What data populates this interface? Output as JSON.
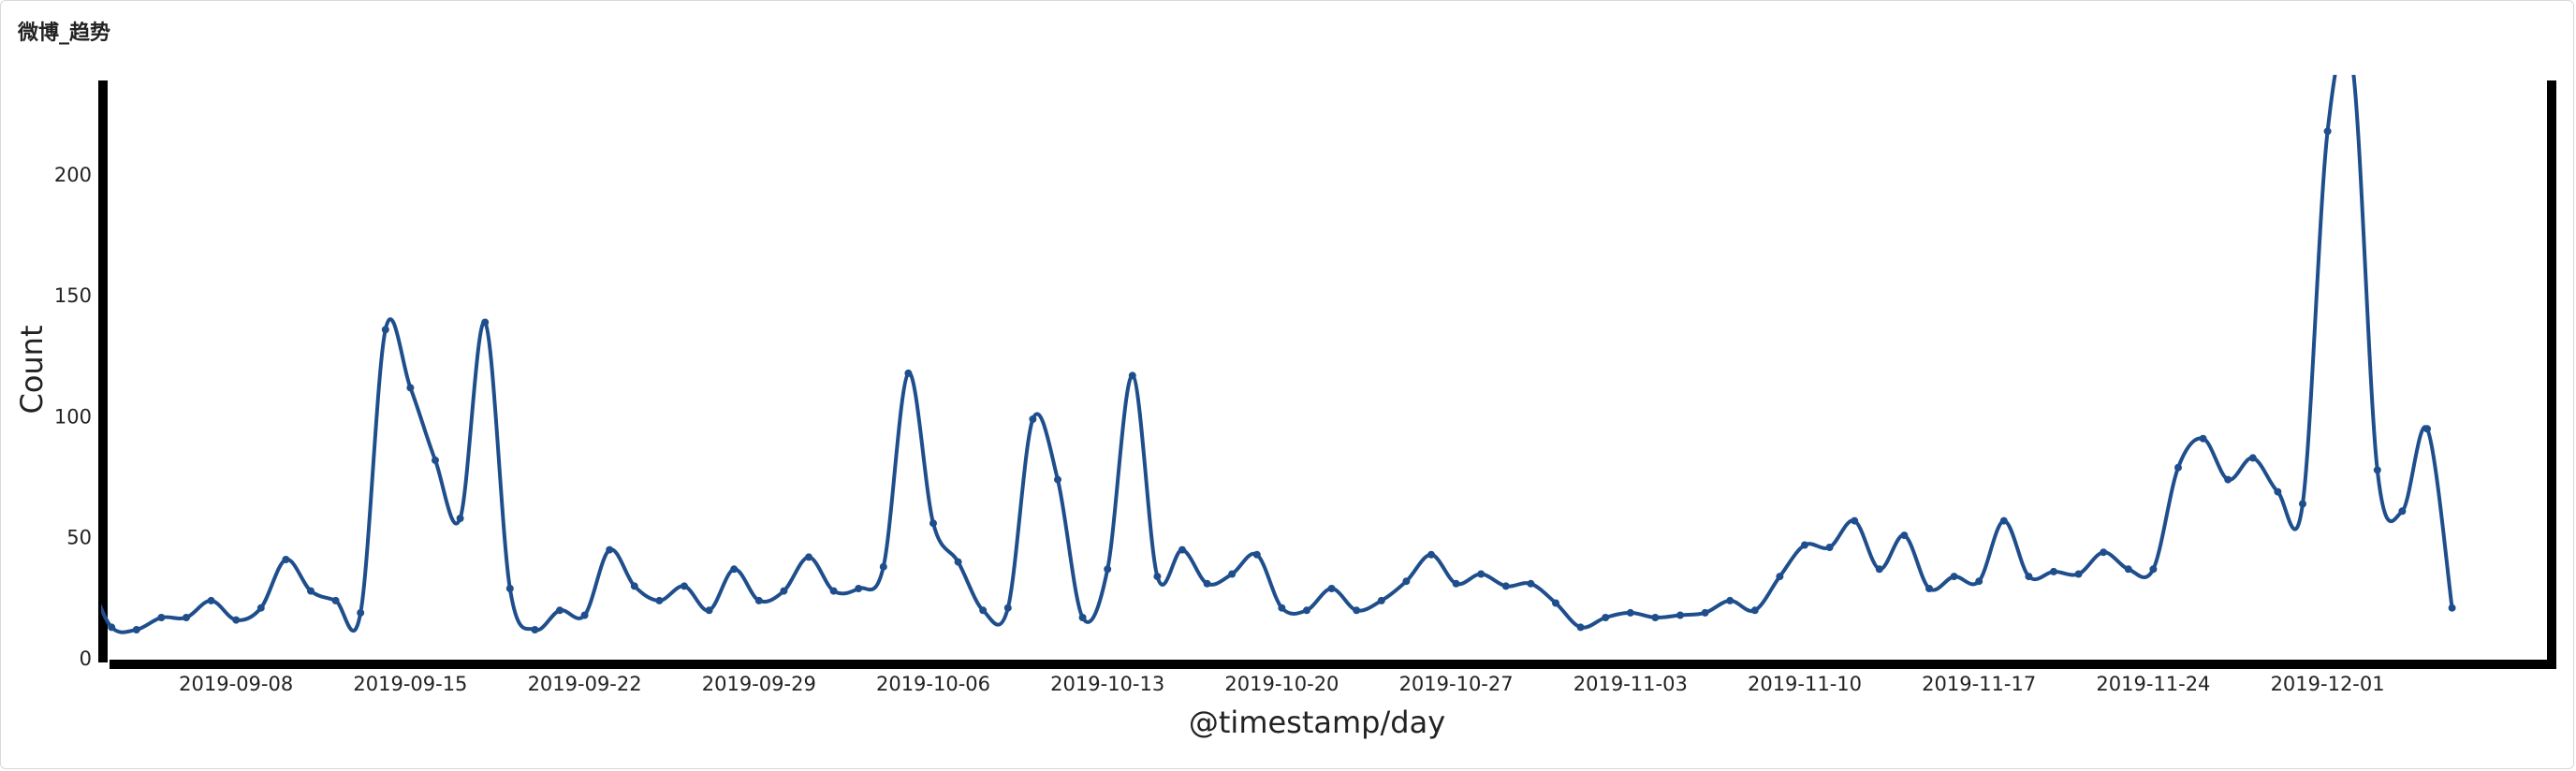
{
  "panel": {
    "title": "微博_趋势"
  },
  "chart_data": {
    "type": "line",
    "title": "",
    "xlabel": "@timestamp/day",
    "ylabel": "Count",
    "start_date": "2019-09-01",
    "x_tick_labels": [
      "2019-09-08",
      "2019-09-15",
      "2019-09-22",
      "2019-09-29",
      "2019-10-06",
      "2019-10-13",
      "2019-10-20",
      "2019-10-27",
      "2019-11-03",
      "2019-11-10",
      "2019-11-17",
      "2019-11-24",
      "2019-12-01"
    ],
    "y_ticks": [
      0,
      50,
      100,
      150,
      200
    ],
    "ylim": [
      0,
      240
    ],
    "grid": false,
    "legend": "none",
    "series": [
      {
        "color": "#1f4e8c",
        "values": [
          38,
          33,
          13,
          12,
          17,
          17,
          24,
          16,
          21,
          41,
          28,
          24,
          19,
          136,
          112,
          82,
          58,
          139,
          29,
          12,
          20,
          18,
          45,
          30,
          24,
          30,
          20,
          37,
          24,
          28,
          42,
          28,
          29,
          38,
          118,
          56,
          40,
          20,
          21,
          99,
          74,
          17,
          37,
          117,
          34,
          45,
          31,
          35,
          43,
          21,
          20,
          29,
          20,
          24,
          32,
          43,
          31,
          35,
          30,
          31,
          23,
          13,
          17,
          19,
          17,
          18,
          19,
          24,
          20,
          34,
          47,
          46,
          57,
          37,
          51,
          29,
          34,
          32,
          57,
          34,
          36,
          35,
          44,
          37,
          37,
          79,
          91,
          74,
          83,
          69,
          64,
          218,
          245,
          78,
          61,
          95,
          21
        ]
      }
    ]
  }
}
